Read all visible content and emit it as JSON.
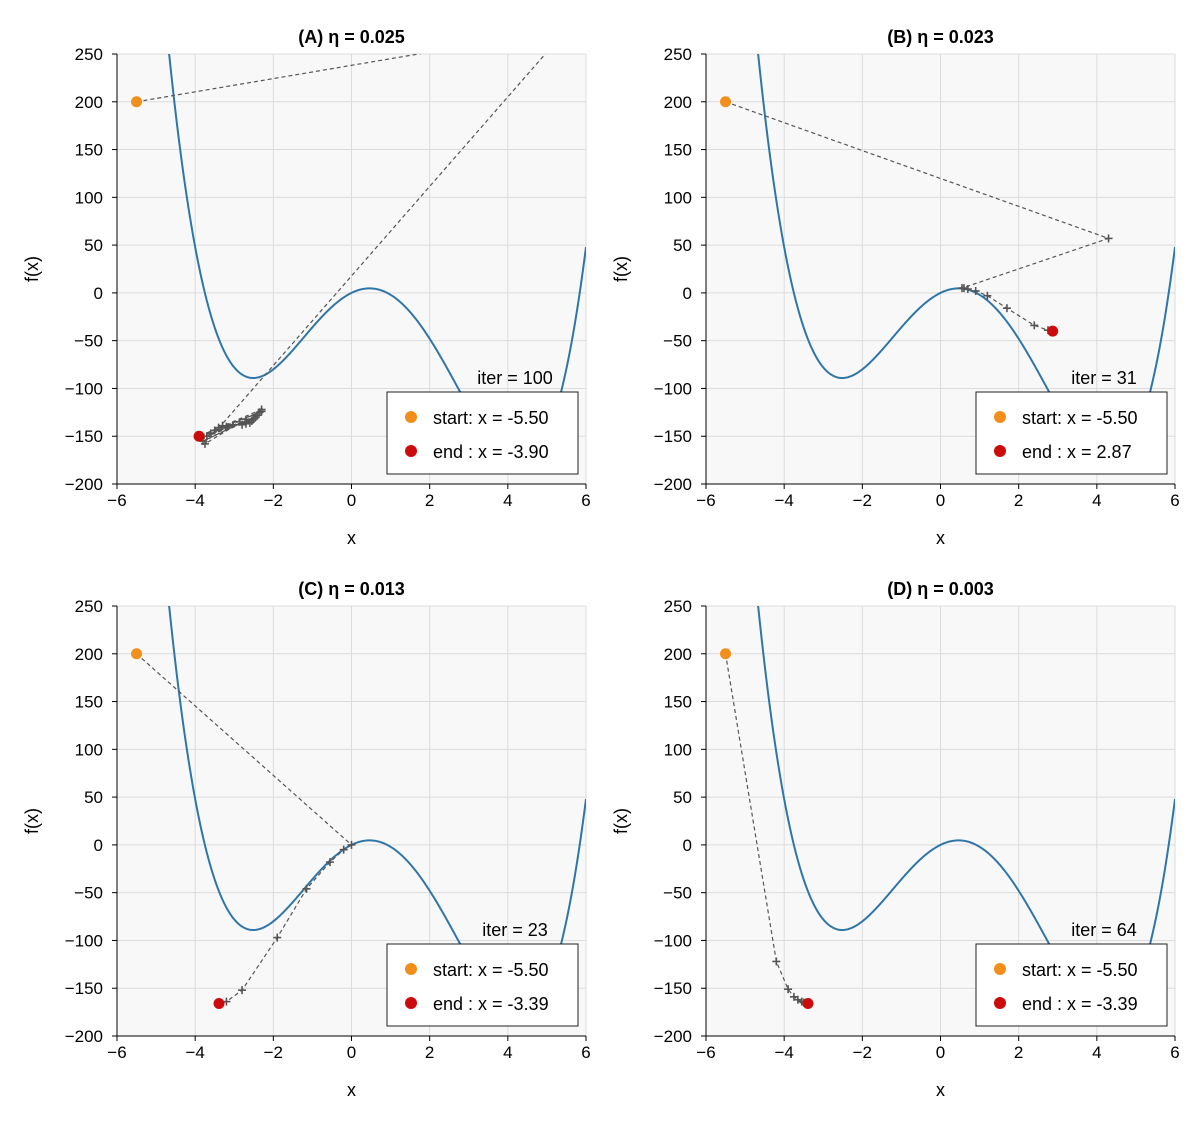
{
  "chart_data": [
    {
      "type": "line",
      "title": "(A)  η = 0.025",
      "xlabel": "x",
      "ylabel": "f(x)",
      "xlim": [
        -6,
        6
      ],
      "ylim": [
        -200,
        250
      ],
      "xticks": [
        -6,
        -4,
        -2,
        0,
        2,
        4,
        6
      ],
      "yticks": [
        -200,
        -150,
        -100,
        -50,
        0,
        50,
        100,
        150,
        200,
        250
      ],
      "grid": true,
      "annotation": "iter = 100",
      "legend_position": "bottom-right",
      "legend": [
        {
          "label": "start: x = -5.50",
          "color": "#f28e1c"
        },
        {
          "label": "end : x = -3.90",
          "color": "#cc0c0c"
        }
      ],
      "curve_color": "#2f76a8",
      "path_color": "#555555",
      "start": {
        "x": -5.5,
        "y": 200
      },
      "end": {
        "x": -3.9,
        "y": -150
      },
      "iterates": [
        [
          -5.5,
          200
        ],
        [
          2.0,
          252
        ],
        [
          5.0,
          252
        ],
        [
          -3.75,
          -158
        ],
        [
          -2.3,
          -122
        ],
        [
          -3.9,
          -150
        ],
        [
          -2.35,
          -125
        ],
        [
          -3.85,
          -152
        ],
        [
          -2.4,
          -128
        ],
        [
          -3.8,
          -155
        ],
        [
          -2.45,
          -130
        ],
        [
          -3.7,
          -150
        ],
        [
          -2.5,
          -132
        ],
        [
          -3.6,
          -147
        ],
        [
          -2.55,
          -134
        ],
        [
          -3.5,
          -144
        ],
        [
          -2.6,
          -136
        ],
        [
          -3.4,
          -141
        ],
        [
          -2.7,
          -137
        ],
        [
          -3.3,
          -139
        ],
        [
          -2.8,
          -138
        ],
        [
          -3.2,
          -140
        ],
        [
          -2.3,
          -124
        ],
        [
          -3.9,
          -150
        ]
      ]
    },
    {
      "type": "line",
      "title": "(B)  η = 0.023",
      "xlabel": "x",
      "ylabel": "f(x)",
      "xlim": [
        -6,
        6
      ],
      "ylim": [
        -200,
        250
      ],
      "xticks": [
        -6,
        -4,
        -2,
        0,
        2,
        4,
        6
      ],
      "yticks": [
        -200,
        -150,
        -100,
        -50,
        0,
        50,
        100,
        150,
        200,
        250
      ],
      "grid": true,
      "annotation": "iter = 31",
      "legend_position": "bottom-right",
      "legend": [
        {
          "label": "start: x = -5.50",
          "color": "#f28e1c"
        },
        {
          "label": "end : x = 2.87",
          "color": "#cc0c0c"
        }
      ],
      "curve_color": "#2f76a8",
      "path_color": "#555555",
      "start": {
        "x": -5.5,
        "y": 200
      },
      "end": {
        "x": 2.87,
        "y": -40
      },
      "iterates": [
        [
          -5.5,
          200
        ],
        [
          4.3,
          57
        ],
        [
          0.55,
          5
        ],
        [
          0.6,
          5
        ],
        [
          0.7,
          4
        ],
        [
          0.9,
          2
        ],
        [
          1.2,
          -3
        ],
        [
          1.7,
          -16
        ],
        [
          2.4,
          -34
        ],
        [
          2.75,
          -39
        ],
        [
          2.87,
          -40
        ]
      ]
    },
    {
      "type": "line",
      "title": "(C)  η = 0.013",
      "xlabel": "x",
      "ylabel": "f(x)",
      "xlim": [
        -6,
        6
      ],
      "ylim": [
        -200,
        250
      ],
      "xticks": [
        -6,
        -4,
        -2,
        0,
        2,
        4,
        6
      ],
      "yticks": [
        -200,
        -150,
        -100,
        -50,
        0,
        50,
        100,
        150,
        200,
        250
      ],
      "grid": true,
      "annotation": "iter = 23",
      "legend_position": "bottom-right",
      "legend": [
        {
          "label": "start: x = -5.50",
          "color": "#f28e1c"
        },
        {
          "label": "end : x = -3.39",
          "color": "#cc0c0c"
        }
      ],
      "curve_color": "#2f76a8",
      "path_color": "#555555",
      "start": {
        "x": -5.5,
        "y": 200
      },
      "end": {
        "x": -3.39,
        "y": -166
      },
      "iterates": [
        [
          -5.5,
          200
        ],
        [
          0.0,
          0
        ],
        [
          -0.2,
          -5
        ],
        [
          -0.55,
          -18
        ],
        [
          -1.15,
          -46
        ],
        [
          -1.9,
          -97
        ],
        [
          -2.8,
          -152
        ],
        [
          -3.2,
          -164
        ],
        [
          -3.39,
          -166
        ]
      ]
    },
    {
      "type": "line",
      "title": "(D)  η = 0.003",
      "xlabel": "x",
      "ylabel": "f(x)",
      "xlim": [
        -6,
        6
      ],
      "ylim": [
        -200,
        250
      ],
      "xticks": [
        -6,
        -4,
        -2,
        0,
        2,
        4,
        6
      ],
      "yticks": [
        -200,
        -150,
        -100,
        -50,
        0,
        50,
        100,
        150,
        200,
        250
      ],
      "grid": true,
      "annotation": "iter = 64",
      "legend_position": "bottom-right",
      "legend": [
        {
          "label": "start: x = -5.50",
          "color": "#f28e1c"
        },
        {
          "label": "end : x = -3.39",
          "color": "#cc0c0c"
        }
      ],
      "curve_color": "#2f76a8",
      "path_color": "#555555",
      "start": {
        "x": -5.5,
        "y": 200
      },
      "end": {
        "x": -3.39,
        "y": -166
      },
      "iterates": [
        [
          -5.5,
          200
        ],
        [
          -4.2,
          -122
        ],
        [
          -3.9,
          -151
        ],
        [
          -3.75,
          -159
        ],
        [
          -3.65,
          -162
        ],
        [
          -3.55,
          -164
        ],
        [
          -3.5,
          -165
        ],
        [
          -3.45,
          -166
        ],
        [
          -3.39,
          -166
        ]
      ]
    }
  ]
}
